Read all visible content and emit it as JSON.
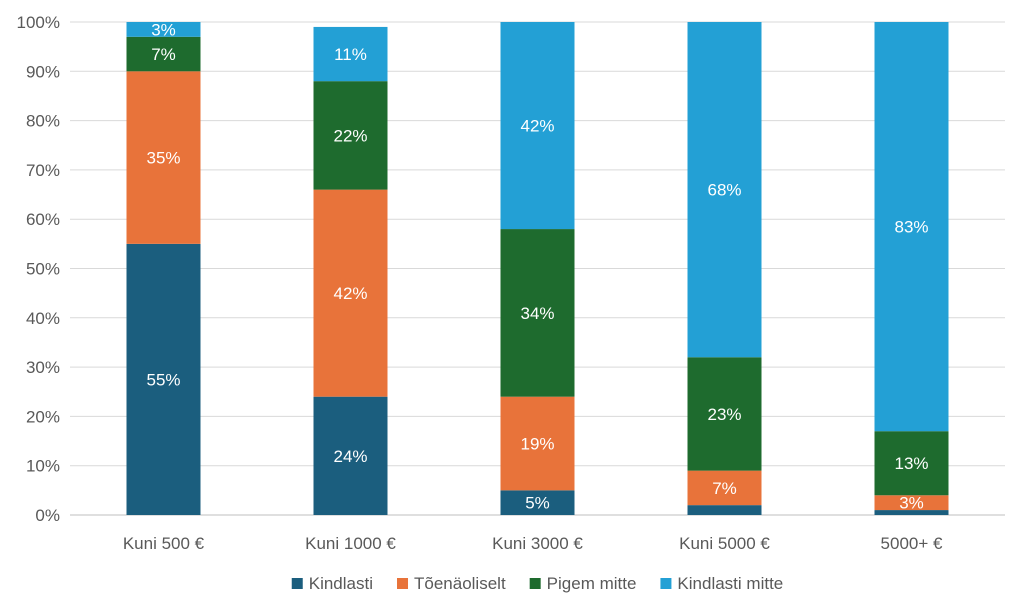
{
  "chart_data": {
    "type": "bar",
    "stacked": true,
    "normalized": true,
    "title": "",
    "xlabel": "",
    "ylabel": "",
    "ylim": [
      0,
      100
    ],
    "yticks": [
      "0%",
      "10%",
      "20%",
      "30%",
      "40%",
      "50%",
      "60%",
      "70%",
      "80%",
      "90%",
      "100%"
    ],
    "grid": true,
    "legend_position": "bottom",
    "categories": [
      "Kuni 500 €",
      "Kuni 1000 €",
      "Kuni 3000 €",
      "Kuni 5000 €",
      "5000+ €"
    ],
    "series": [
      {
        "name": "Kindlasti",
        "color": "#1B5E7E",
        "values": [
          55,
          24,
          5,
          2,
          1
        ],
        "labels": [
          "55%",
          "24%",
          "5%",
          "",
          ""
        ]
      },
      {
        "name": "Tõenäoliselt",
        "color": "#E8733A",
        "values": [
          35,
          42,
          19,
          7,
          3
        ],
        "labels": [
          "35%",
          "42%",
          "19%",
          "7%",
          "3%"
        ]
      },
      {
        "name": "Pigem mitte",
        "color": "#1E6B2E",
        "values": [
          7,
          22,
          34,
          23,
          13
        ],
        "labels": [
          "7%",
          "22%",
          "34%",
          "23%",
          "13%"
        ]
      },
      {
        "name": "Kindlasti mitte",
        "color": "#23A0D5",
        "values": [
          3,
          11,
          42,
          68,
          83
        ],
        "labels": [
          "3%",
          "11%",
          "42%",
          "68%",
          "83%"
        ]
      }
    ]
  }
}
